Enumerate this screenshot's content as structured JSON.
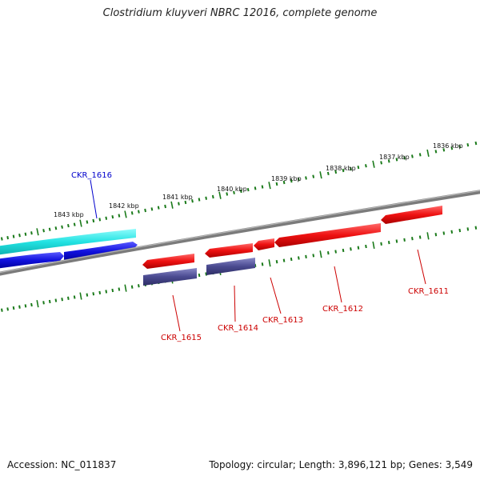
{
  "header": {
    "title": "Clostridium kluyveri NBRC 12016, complete genome"
  },
  "footer": {
    "accession": "Accession: NC_011837",
    "topology": "Topology: circular; Length: 3,896,121 bp; Genes: 3,549"
  },
  "scale": {
    "labels": [
      "1836 kbp",
      "1837 kbp",
      "1838 kbp",
      "1839 kbp",
      "1840 kbp",
      "1841 kbp",
      "1842 kbp",
      "1843 kbp"
    ],
    "tick_color": "#1a7a1a"
  },
  "genes": [
    {
      "name": "CKR_1611",
      "color": "#cc0000"
    },
    {
      "name": "CKR_1612",
      "color": "#cc0000"
    },
    {
      "name": "CKR_1613",
      "color": "#cc0000"
    },
    {
      "name": "CKR_1614",
      "color": "#cc0000"
    },
    {
      "name": "CKR_1615",
      "color": "#cc0000"
    },
    {
      "name": "CKR_1616",
      "color": "#0000cc"
    }
  ],
  "colors": {
    "backbone": "#808080",
    "forward_gene": "#ff1a1a",
    "reverse_gene": "#1a1ae6",
    "cds_forward": "#1fe5e5",
    "cds_reverse": "#4a4a8c"
  }
}
